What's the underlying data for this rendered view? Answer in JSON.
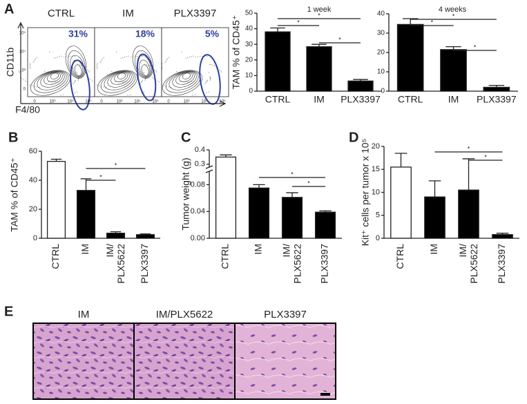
{
  "flow_cytometry": {
    "label": "A",
    "y_label": "CD11b",
    "x_label": "F4/80",
    "plots": [
      {
        "name": "CTRL",
        "percent": "31%"
      },
      {
        "name": "IM",
        "percent": "18%"
      },
      {
        "name": "PLX3397",
        "percent": "5%"
      }
    ],
    "y_ticks": [
      "10⁵",
      "10⁴",
      "10³",
      "0"
    ],
    "x_ticks": [
      "0",
      "10³",
      "10⁴",
      "10⁵"
    ]
  },
  "chart_data": [
    {
      "type": "bar",
      "title": "1 week",
      "y_label": "TAM % of CD45⁺",
      "categories": [
        "CTRL",
        "IM",
        "PLX3397"
      ],
      "values": [
        38,
        28.5,
        6.5
      ],
      "errors": [
        2.5,
        1.5,
        1
      ],
      "color": "#000000",
      "ylim": [
        0,
        50
      ],
      "yticks": [
        0,
        10,
        20,
        30,
        40,
        50
      ],
      "significance": [
        {
          "from": 0,
          "to": 1,
          "label": "*"
        },
        {
          "from": 0,
          "to": 2,
          "label": "*"
        },
        {
          "from": 1,
          "to": 2,
          "label": "*"
        }
      ]
    },
    {
      "type": "bar",
      "title": "4 weeks",
      "categories": [
        "CTRL",
        "IM",
        "PLX3397"
      ],
      "values": [
        34.5,
        21.5,
        2
      ],
      "errors": [
        3,
        1.5,
        1
      ],
      "color": "#000000",
      "ylim": [
        0,
        40
      ],
      "yticks": [
        0,
        10,
        20,
        30,
        40
      ],
      "significance": [
        {
          "from": 0,
          "to": 1,
          "label": "*"
        },
        {
          "from": 0,
          "to": 2,
          "label": "*"
        },
        {
          "from": 1,
          "to": 2,
          "label": "*"
        }
      ]
    },
    {
      "type": "bar",
      "panel_label": "B",
      "y_label": "TAM % of CD45⁺",
      "categories": [
        "CTRL",
        "IM",
        "IM/ PLX5622",
        "PLX3397"
      ],
      "values": [
        53,
        33,
        3.5,
        2.5
      ],
      "errors": [
        1.5,
        8,
        1,
        0.5
      ],
      "colors": [
        "#ffffff",
        "#000000",
        "#000000",
        "#000000"
      ],
      "ylim": [
        0,
        60
      ],
      "yticks": [
        0,
        20,
        40,
        60
      ],
      "significance": [
        {
          "from": 1,
          "to": 2,
          "label": "*"
        },
        {
          "from": 1,
          "to": 3,
          "label": "*"
        }
      ]
    },
    {
      "type": "bar",
      "panel_label": "C",
      "y_label": "Tumor weight (g)",
      "categories": [
        "CTRL",
        "IM",
        "IM/ PLX5622",
        "PLX3397"
      ],
      "values": [
        0.35,
        0.075,
        0.061,
        0.039
      ],
      "errors": [
        0.015,
        0.005,
        0.007,
        0.002
      ],
      "colors": [
        "#ffffff",
        "#000000",
        "#000000",
        "#000000"
      ],
      "ylim": [
        0,
        0.4
      ],
      "axis_break": [
        0.1,
        0.28
      ],
      "yticks": [
        {
          "value": 0,
          "label": "0.00"
        },
        {
          "value": 0.04,
          "label": "0.04"
        },
        {
          "value": 0.08,
          "label": "0.08"
        },
        0.3,
        0.4
      ],
      "significance": [
        {
          "from": 1,
          "to": 3,
          "label": "*"
        },
        {
          "from": 2,
          "to": 3,
          "label": "*"
        }
      ]
    },
    {
      "type": "bar",
      "panel_label": "D",
      "y_label": "Kit⁺ cells per tumor x 10⁵",
      "categories": [
        "CTRL",
        "IM",
        "IM/ PLX5622",
        "PLX3397"
      ],
      "values": [
        15.5,
        9,
        10.5,
        0.8
      ],
      "errors": [
        3,
        3.5,
        6.8,
        0.3
      ],
      "colors": [
        "#ffffff",
        "#000000",
        "#000000",
        "#000000"
      ],
      "ylim": [
        0,
        20
      ],
      "yticks": [
        0,
        5,
        10,
        15,
        20
      ],
      "significance": [
        {
          "from": 1,
          "to": 3,
          "label": "*"
        },
        {
          "from": 2,
          "to": 3,
          "label": "*"
        }
      ]
    }
  ],
  "histology": {
    "label": "E",
    "panels": [
      "IM",
      "IM/PLX5622",
      "PLX3397"
    ]
  }
}
